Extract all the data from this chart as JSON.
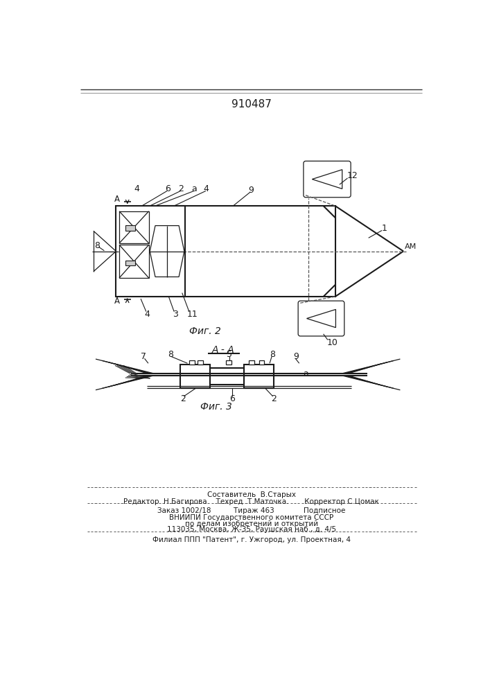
{
  "patent_number": "910487",
  "fig2_label": "Фиг. 2",
  "fig3_label": "Фиг. 3",
  "section_label": "A - A",
  "line_color": "#1a1a1a",
  "footer_lines": [
    "Составитель  В.Старых",
    "Редактор  Н.Багирова    Техред  Т.Маточка.       Корректор С.Цомак",
    "Заказ 1002/18          Тираж 463             Подписное",
    "ВНИИПИ Государственного комитета СССР",
    "по делам изобретений и открытий",
    "113035, Москва, Ж-35, Раушская наб., д. 4/5",
    "Филиал ППП \"Патент\", г. Ужгород, ул. Проектная, 4"
  ]
}
